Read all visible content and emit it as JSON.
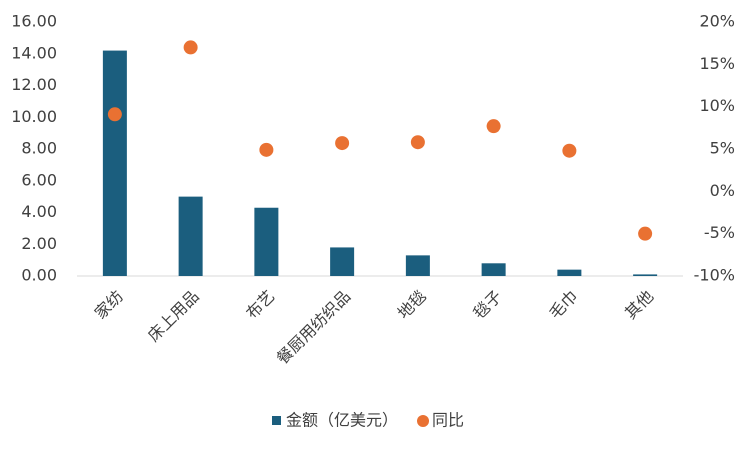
{
  "chart_data": {
    "type": "bar",
    "categories": [
      "家纺",
      "床上用品",
      "布艺",
      "餐厨用纺织品",
      "地毯",
      "毯子",
      "毛巾",
      "其他"
    ],
    "series": [
      {
        "name": "金额（亿美元）",
        "type": "bar",
        "color": "#1b5e7e",
        "values": [
          14.2,
          5.0,
          4.3,
          1.8,
          1.3,
          0.8,
          0.4,
          0.1
        ]
      },
      {
        "name": "同比",
        "type": "scatter",
        "axis": "y2",
        "color": "#e97132",
        "values": [
          9.1,
          17.0,
          4.9,
          5.7,
          5.8,
          7.7,
          4.8,
          -5.0
        ]
      }
    ],
    "ylim": [
      0,
      16
    ],
    "yticks": [
      {
        "value": 0,
        "label": "0.00"
      },
      {
        "value": 2,
        "label": "2.00"
      },
      {
        "value": 4,
        "label": "4.00"
      },
      {
        "value": 6,
        "label": "6.00"
      },
      {
        "value": 8,
        "label": "8.00"
      },
      {
        "value": 10,
        "label": "10.00"
      },
      {
        "value": 12,
        "label": "12.00"
      },
      {
        "value": 14,
        "label": "14.00"
      },
      {
        "value": 16,
        "label": "16.00"
      }
    ],
    "y2lim": [
      -10,
      20
    ],
    "y2ticks": [
      {
        "value": -10,
        "label": "-10%"
      },
      {
        "value": -5,
        "label": "-5%"
      },
      {
        "value": 0,
        "label": "0%"
      },
      {
        "value": 5,
        "label": "5%"
      },
      {
        "value": 10,
        "label": "10%"
      },
      {
        "value": 15,
        "label": "15%"
      },
      {
        "value": 20,
        "label": "20%"
      }
    ],
    "grid": false,
    "legend": "bottom"
  }
}
